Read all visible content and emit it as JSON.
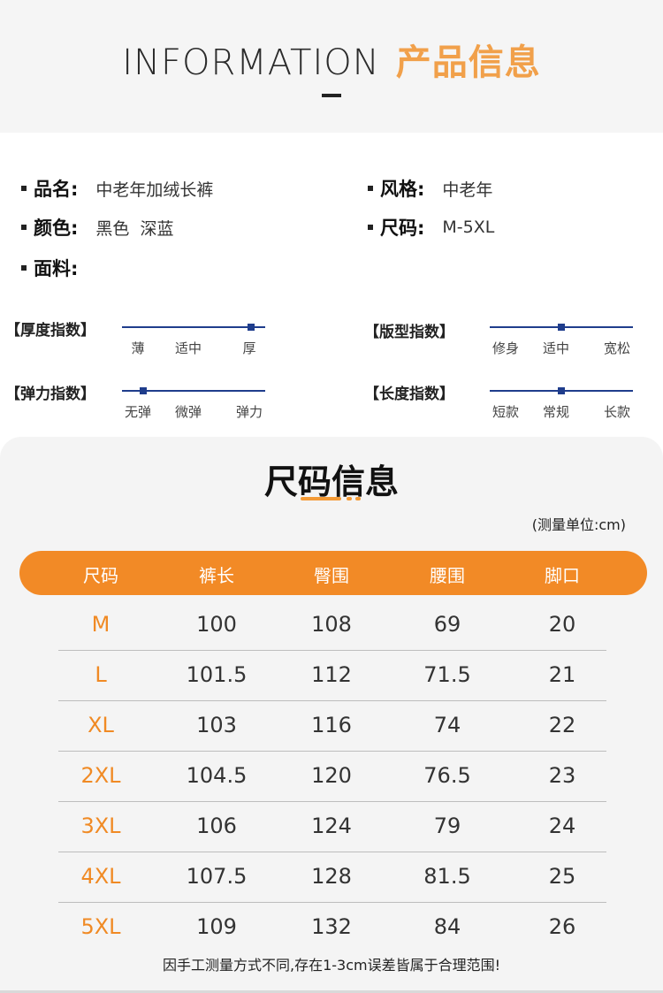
{
  "header": {
    "title_en": "INFORMATION",
    "title_cn": "产品信息"
  },
  "info": {
    "name_key": "品名:",
    "name_value": "中老年加绒长裤",
    "style_key": "风格:",
    "style_value": "中老年",
    "color_key": "颜色:",
    "color_value": "黑色  深蓝",
    "size_key": "尺码:",
    "size_value": "M-5XL",
    "fabric_key": "面料:"
  },
  "indices": [
    {
      "label": "【厚度指数】",
      "ticks": [
        "薄",
        "适中",
        "厚"
      ],
      "level": 0.9
    },
    {
      "label": "【版型指数】",
      "ticks": [
        "修身",
        "适中",
        "宽松"
      ],
      "level": 0.5
    },
    {
      "label": "【弹力指数】",
      "ticks": [
        "无弹",
        "微弹",
        "弹力"
      ],
      "level": 0.15
    },
    {
      "label": "【长度指数】",
      "ticks": [
        "短款",
        "常规",
        "长款"
      ],
      "level": 0.5
    }
  ],
  "size_info": {
    "title": "尺码信息",
    "unit": "(测量单位:cm)",
    "headers": [
      "尺码",
      "裤长",
      "臀围",
      "腰围",
      "脚口"
    ],
    "rows": [
      [
        "M",
        "100",
        "108",
        "69",
        "20"
      ],
      [
        "L",
        "101.5",
        "112",
        "71.5",
        "21"
      ],
      [
        "XL",
        "103",
        "116",
        "74",
        "22"
      ],
      [
        "2XL",
        "104.5",
        "120",
        "76.5",
        "23"
      ],
      [
        "3XL",
        "106",
        "124",
        "79",
        "24"
      ],
      [
        "4XL",
        "107.5",
        "128",
        "81.5",
        "25"
      ],
      [
        "5XL",
        "109",
        "132",
        "84",
        "26"
      ]
    ],
    "note": "因手工测量方式不同,存在1-3cm误差皆属于合理范围!"
  }
}
